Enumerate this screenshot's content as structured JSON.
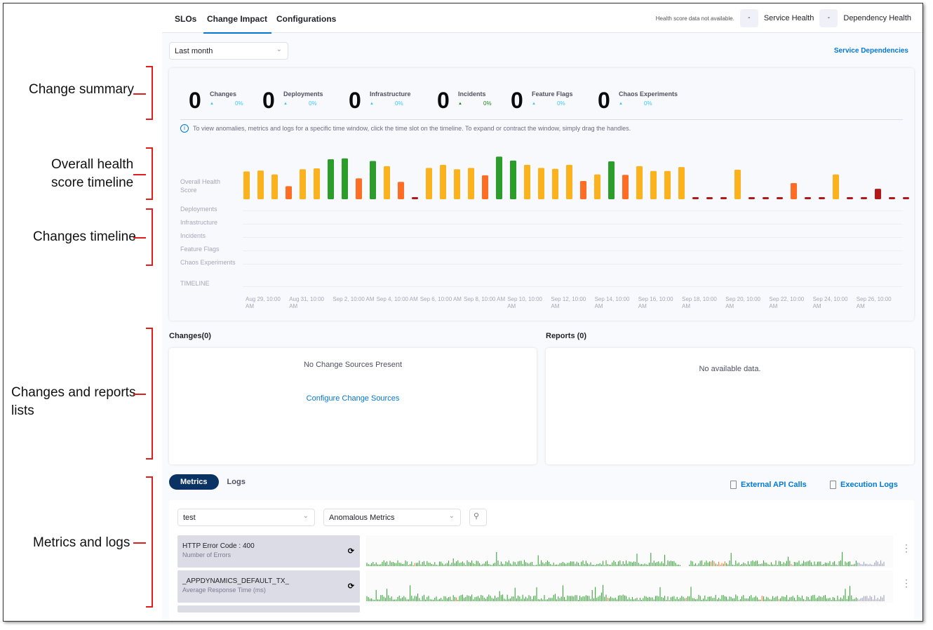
{
  "annotations": [
    "Change summary",
    "Overall health\nscore timeline",
    "Changes timeline",
    "Changes and reports\nlists",
    "Metrics and logs"
  ],
  "tabs": [
    {
      "label": "SLOs"
    },
    {
      "label": "Change Impact",
      "active": true
    },
    {
      "label": "Configurations"
    }
  ],
  "health": {
    "note": "Health score data not available.",
    "service_value": "-",
    "service_label": "Service Health",
    "dependency_value": "-",
    "dependency_label": "Dependency Health"
  },
  "range": {
    "value": "Last month"
  },
  "service_dependencies": "Service Dependencies",
  "summary": [
    {
      "count": "0",
      "label": "Changes",
      "pct": "0%"
    },
    {
      "count": "0",
      "label": "Deployments",
      "pct": "0%"
    },
    {
      "count": "0",
      "label": "Infrastructure",
      "pct": "0%"
    },
    {
      "count": "0",
      "label": "Incidents",
      "pct": "0%",
      "color": "#1b8a1b"
    },
    {
      "count": "0",
      "label": "Feature Flags",
      "pct": "0%"
    },
    {
      "count": "0",
      "label": "Chaos Experiments",
      "pct": "0%"
    }
  ],
  "info": "To view anomalies, metrics and logs for a specific time window, click the time slot on the timeline. To expand or contract the window, simply drag the handles.",
  "timeline": {
    "rows": [
      "Overall Health Score",
      "Deployments",
      "Infrastructure",
      "Incidents",
      "Feature Flags",
      "Chaos Experiments",
      "TIMELINE"
    ],
    "ticks": [
      "Aug 29, 10:00 AM",
      "Aug 31, 10:00 AM",
      "Sep 2, 10:00 AM",
      "Sep 4, 10:00 AM",
      "Sep 6, 10:00 AM",
      "Sep 8, 10:00 AM",
      "Sep 10, 10:00 AM",
      "Sep 12, 10:00 AM",
      "Sep 14, 10:00 AM",
      "Sep 16, 10:00 AM",
      "Sep 18, 10:00 AM",
      "Sep 20, 10:00 AM",
      "Sep 22, 10:00 AM",
      "Sep 24, 10:00 AM",
      "Sep 26, 10:00 AM"
    ]
  },
  "chart_data": {
    "type": "bar",
    "ylim": [
      0,
      100
    ],
    "series": [
      {
        "values": [
          64,
          66,
          57,
          30,
          69,
          71,
          92,
          94,
          48,
          88,
          76,
          40,
          null,
          72,
          79,
          69,
          72,
          55,
          98,
          89,
          79,
          72,
          70,
          79,
          42,
          57,
          87,
          56,
          76,
          65,
          65,
          74,
          null,
          null,
          null,
          68,
          null,
          null,
          null,
          37,
          null,
          null,
          57,
          null,
          null,
          24,
          null,
          null
        ]
      }
    ],
    "colors": {
      "healthy": "#2a9d2a",
      "warning": "#fbb21d",
      "degraded": "#ff6d24",
      "unhealthy": "#b41717",
      "no_data": "#b41717"
    }
  },
  "changes": {
    "title": "Changes(0)",
    "empty": "No Change Sources Present",
    "link": "Configure Change Sources"
  },
  "reports": {
    "title": "Reports (0)",
    "empty": "No available data."
  },
  "metrics": {
    "tabs": [
      "Metrics",
      "Logs"
    ],
    "external_api": "External API Calls",
    "execution_logs": "Execution Logs",
    "filter1": "test",
    "filter2": "Anomalous Metrics",
    "rows": [
      {
        "title": "HTTP Error Code : 400",
        "subtitle": "Number of Errors"
      },
      {
        "title": "_APPDYNAMICS_DEFAULT_TX_",
        "subtitle": "Average Response Time (ms)"
      }
    ]
  }
}
